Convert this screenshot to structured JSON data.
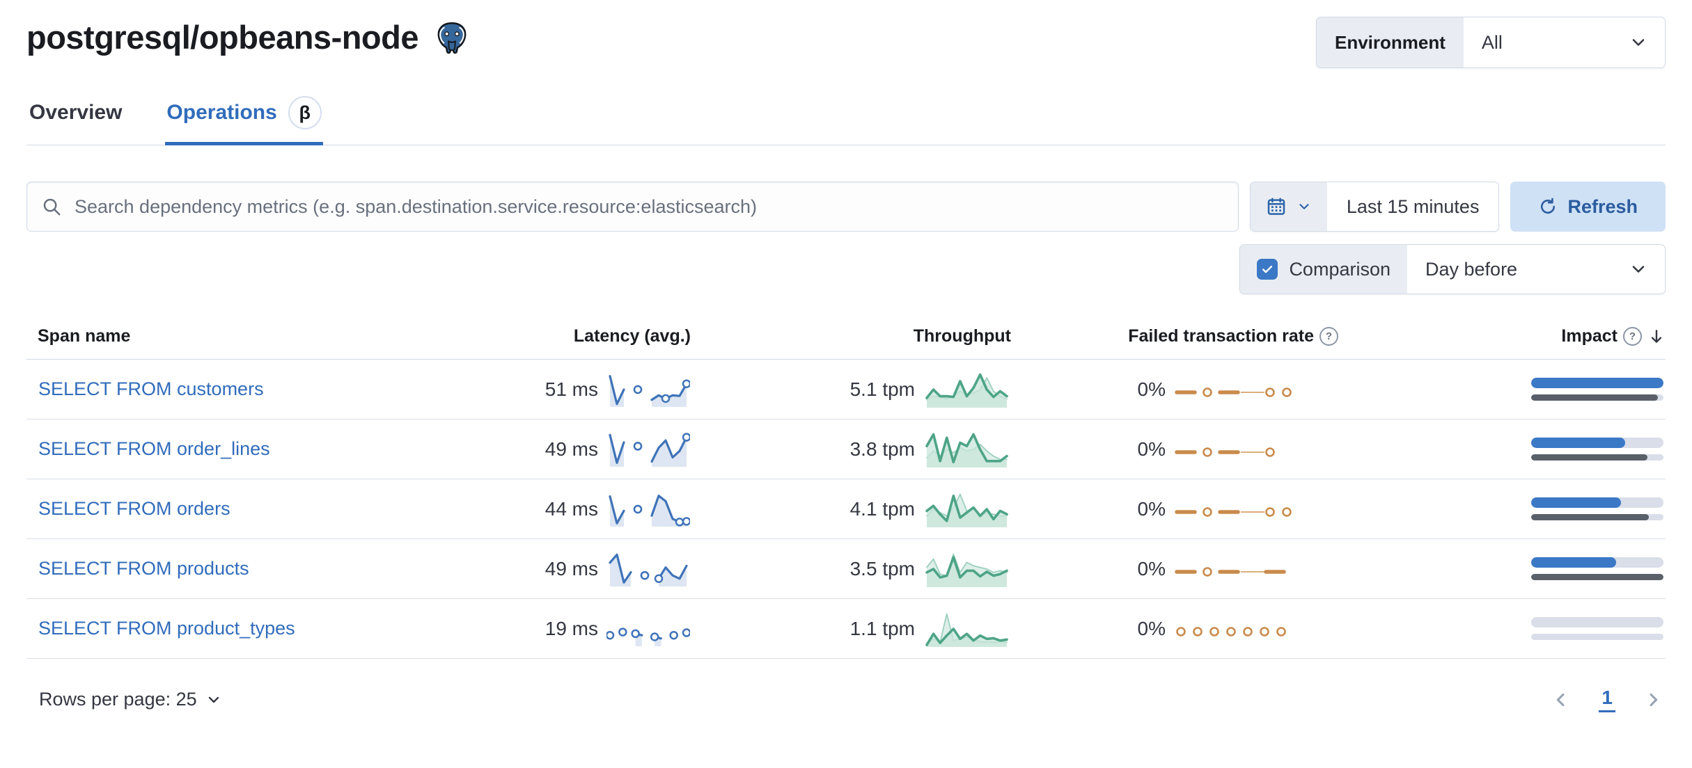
{
  "title": "postgresql/opbeans-node",
  "environment": {
    "label": "Environment",
    "value": "All"
  },
  "tabs": [
    {
      "label": "Overview",
      "active": false
    },
    {
      "label": "Operations",
      "active": true,
      "badge": "β"
    }
  ],
  "search": {
    "placeholder": "Search dependency metrics (e.g. span.destination.service.resource:elasticsearch)"
  },
  "time": {
    "range": "Last 15 minutes",
    "refresh_label": "Refresh"
  },
  "comparison": {
    "label": "Comparison",
    "checked": true,
    "value": "Day before"
  },
  "table": {
    "columns": {
      "span_name": "Span name",
      "latency": "Latency (avg.)",
      "throughput": "Throughput",
      "failed_rate": "Failed transaction rate",
      "impact": "Impact"
    },
    "rows": [
      {
        "span_name": "SELECT FROM customers",
        "latency": "51 ms",
        "throughput": "5.1 tpm",
        "failed_rate": "0%",
        "impact_pct": 100,
        "impact_prev_pct": 96,
        "latency_spark": {
          "v": [
            0.92,
            0.05,
            0.5,
            null,
            0.5,
            null,
            0.18,
            0.32,
            0.22,
            0.32,
            0.3,
            0.68
          ],
          "o": [
            4,
            8,
            11
          ]
        },
        "throughput_spark": {
          "cur": [
            0.25,
            0.5,
            0.3,
            0.3,
            0.28,
            0.75,
            0.3,
            0.55,
            0.95,
            0.5,
            0.28,
            0.45,
            0.3
          ],
          "prev": [
            0.2,
            0.3,
            0.28,
            0.22,
            0.3,
            0.45,
            0.35,
            0.4,
            0.5,
            0.85,
            0.45,
            0.3,
            0.22
          ]
        },
        "failed_spark": [
          "dash",
          "circle",
          "dash",
          "thin",
          "circle",
          "circle"
        ]
      },
      {
        "span_name": "SELECT FROM order_lines",
        "latency": "49 ms",
        "throughput": "3.8 tpm",
        "failed_rate": "0%",
        "impact_pct": 71,
        "impact_prev_pct": 88,
        "latency_spark": {
          "v": [
            0.95,
            0.08,
            0.72,
            null,
            0.6,
            null,
            0.12,
            0.55,
            0.78,
            0.25,
            0.45,
            0.88
          ],
          "o": [
            4,
            11
          ]
        },
        "throughput_spark": {
          "cur": [
            0.6,
            0.95,
            0.15,
            0.85,
            0.12,
            0.7,
            0.6,
            0.95,
            0.5,
            0.15,
            0.15,
            0.15,
            0.3
          ],
          "prev": [
            0.25,
            0.45,
            0.3,
            0.5,
            0.4,
            0.55,
            0.45,
            0.5,
            0.65,
            0.45,
            0.3,
            0.2,
            0.2
          ]
        },
        "failed_spark": [
          "dash",
          "circle",
          "dash",
          "thin",
          "circle"
        ]
      },
      {
        "span_name": "SELECT FROM orders",
        "latency": "44 ms",
        "throughput": "4.1 tpm",
        "failed_rate": "0%",
        "impact_pct": 68,
        "impact_prev_pct": 89,
        "latency_spark": {
          "v": [
            0.9,
            0.06,
            0.45,
            null,
            0.5,
            null,
            0.3,
            0.92,
            0.75,
            0.2,
            0.1,
            0.12
          ],
          "o": [
            4,
            10,
            11
          ]
        },
        "throughput_spark": {
          "cur": [
            0.45,
            0.6,
            0.35,
            0.15,
            0.9,
            0.25,
            0.4,
            0.55,
            0.3,
            0.5,
            0.2,
            0.45,
            0.35
          ],
          "prev": [
            0.3,
            0.5,
            0.4,
            0.3,
            0.55,
            0.95,
            0.45,
            0.5,
            0.3,
            0.4,
            0.35,
            0.3,
            0.3
          ]
        },
        "failed_spark": [
          "dash",
          "circle",
          "dash",
          "thin",
          "circle",
          "circle"
        ]
      },
      {
        "span_name": "SELECT FROM products",
        "latency": "49 ms",
        "throughput": "3.5 tpm",
        "failed_rate": "0%",
        "impact_pct": 64,
        "impact_prev_pct": 100,
        "latency_spark": {
          "v": [
            0.7,
            0.95,
            0.08,
            0.4,
            null,
            0.3,
            null,
            0.2,
            0.55,
            0.3,
            0.2,
            0.6
          ],
          "o": [
            5,
            7
          ]
        },
        "throughput_spark": {
          "cur": [
            0.4,
            0.5,
            0.25,
            0.3,
            0.85,
            0.25,
            0.45,
            0.45,
            0.28,
            0.42,
            0.3,
            0.35,
            0.45
          ],
          "prev": [
            0.55,
            0.8,
            0.35,
            0.3,
            0.95,
            0.4,
            0.7,
            0.6,
            0.55,
            0.5,
            0.4,
            0.45,
            0.4
          ]
        },
        "failed_spark": [
          "dash",
          "circle",
          "dash",
          "thin",
          "dash"
        ]
      },
      {
        "span_name": "SELECT FROM product_types",
        "latency": "19 ms",
        "throughput": "1.1 tpm",
        "failed_rate": "0%",
        "impact_pct": 0,
        "impact_prev_pct": 0,
        "latency_spark": {
          "v": [
            0.3,
            null,
            0.4,
            null,
            0.35,
            0.3,
            null,
            0.25,
            0.2,
            null,
            0.3,
            null,
            0.38
          ],
          "o": [
            4,
            7
          ]
        },
        "throughput_spark": {
          "cur": [
            0.02,
            0.35,
            0.08,
            0.3,
            0.5,
            0.2,
            0.35,
            0.15,
            0.3,
            0.2,
            0.22,
            0.15,
            0.18
          ],
          "prev": [
            0.05,
            0.2,
            0.1,
            0.95,
            0.15,
            0.2,
            0.25,
            0.18,
            0.12,
            0.1,
            0.1,
            0.12,
            0.1
          ]
        },
        "failed_spark": [
          "circle",
          "circle",
          "circle",
          "circle",
          "circle",
          "circle",
          "circle"
        ]
      }
    ]
  },
  "footer": {
    "rows_per_page_label": "Rows per page: 25",
    "page": "1"
  },
  "colors": {
    "accent_blue": "#316cbb",
    "bar_blue": "#3b78c6",
    "bar_gray": "#5a6069",
    "track_gray": "#d9dee9",
    "latency_line": "#3f73b8",
    "latency_fill": "#dde6f2",
    "green_line": "#4da487",
    "green_fill": "#c8e6db",
    "green_prev_line": "#9ccfbd",
    "green_prev_fill": "#ddefe8",
    "orange": "#c98a4b",
    "orange_thin": "#dcae7e"
  }
}
